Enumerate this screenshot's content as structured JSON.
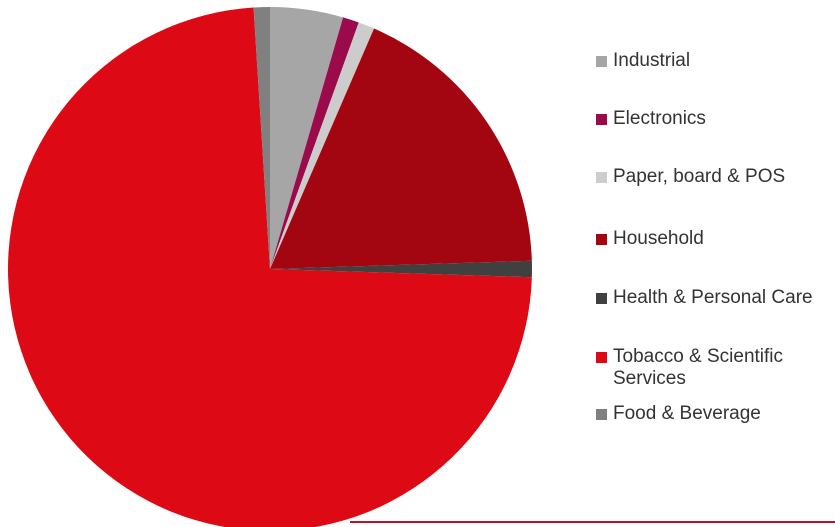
{
  "chart_data": {
    "type": "pie",
    "title": "",
    "start_angle_deg": 0,
    "direction": "clockwise",
    "slices": [
      {
        "label": "Industrial",
        "value": 4.5,
        "color": "#a6a6a6"
      },
      {
        "label": "Electronics",
        "value": 1.0,
        "color": "#9b0a4a"
      },
      {
        "label": "Paper, board & POS",
        "value": 1.0,
        "color": "#cccccc"
      },
      {
        "label": "Household",
        "value": 18.0,
        "color": "#a30611"
      },
      {
        "label": "Health & Personal Care",
        "value": 1.0,
        "color": "#404040"
      },
      {
        "label": "Tobacco & Scientific Services",
        "value": 73.5,
        "color": "#dd0a15"
      },
      {
        "label": "Food & Beverage",
        "value": 1.0,
        "color": "#808080"
      }
    ],
    "legend": {
      "position": "right",
      "items": [
        {
          "label": "Industrial",
          "color": "#a6a6a6"
        },
        {
          "label": "Electronics",
          "color": "#9b0a4a"
        },
        {
          "label": "Paper, board & POS",
          "color": "#cccccc"
        },
        {
          "label": "Household",
          "color": "#a30611"
        },
        {
          "label": "Health & Personal Care",
          "color": "#404040"
        },
        {
          "label": "Tobacco & Scientific Services",
          "color": "#dd0a15"
        },
        {
          "label": "Food & Beverage",
          "color": "#808080"
        }
      ]
    }
  }
}
